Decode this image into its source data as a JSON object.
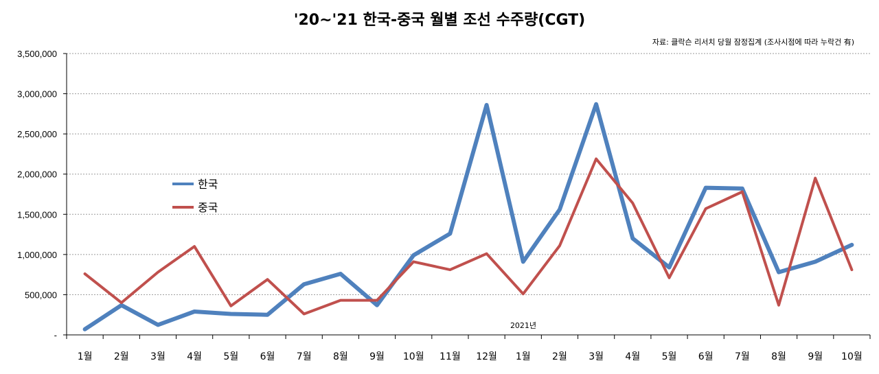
{
  "chart_data": {
    "type": "line",
    "title": "'20~'21 한국-중국 월별 조선 수주량(CGT)",
    "source_note": "자료: 클락슨 리서치 당월 잠정집계 (조사시점에 따라 누락건 有)",
    "year_annotation": "2021년",
    "categories": [
      "1월",
      "2월",
      "3월",
      "4월",
      "5월",
      "6월",
      "7월",
      "8월",
      "9월",
      "10월",
      "11월",
      "12월",
      "1월",
      "2월",
      "3월",
      "4월",
      "5월",
      "6월",
      "7월",
      "8월",
      "9월",
      "10월"
    ],
    "ylim": [
      0,
      3500000
    ],
    "yticks": [
      {
        "value": 0,
        "label": "-"
      },
      {
        "value": 500000,
        "label": "500,000"
      },
      {
        "value": 1000000,
        "label": "1,000,000"
      },
      {
        "value": 1500000,
        "label": "1,500,000"
      },
      {
        "value": 2000000,
        "label": "2,000,000"
      },
      {
        "value": 2500000,
        "label": "2,500,000"
      },
      {
        "value": 3000000,
        "label": "3,000,000"
      },
      {
        "value": 3500000,
        "label": "3,500,000"
      }
    ],
    "grid": true,
    "legend_position": "left-middle",
    "series": [
      {
        "name": "한국",
        "color": "#4F81BD",
        "values": [
          70000,
          370000,
          125000,
          290000,
          260000,
          250000,
          630000,
          760000,
          370000,
          990000,
          1260000,
          2860000,
          910000,
          1560000,
          2870000,
          1200000,
          840000,
          1830000,
          1820000,
          780000,
          910000,
          1120000
        ]
      },
      {
        "name": "중국",
        "color": "#C0504D",
        "values": [
          760000,
          400000,
          780000,
          1100000,
          360000,
          690000,
          260000,
          430000,
          430000,
          910000,
          810000,
          1010000,
          510000,
          1110000,
          2190000,
          1640000,
          710000,
          1570000,
          1780000,
          370000,
          1950000,
          810000
        ]
      }
    ]
  }
}
